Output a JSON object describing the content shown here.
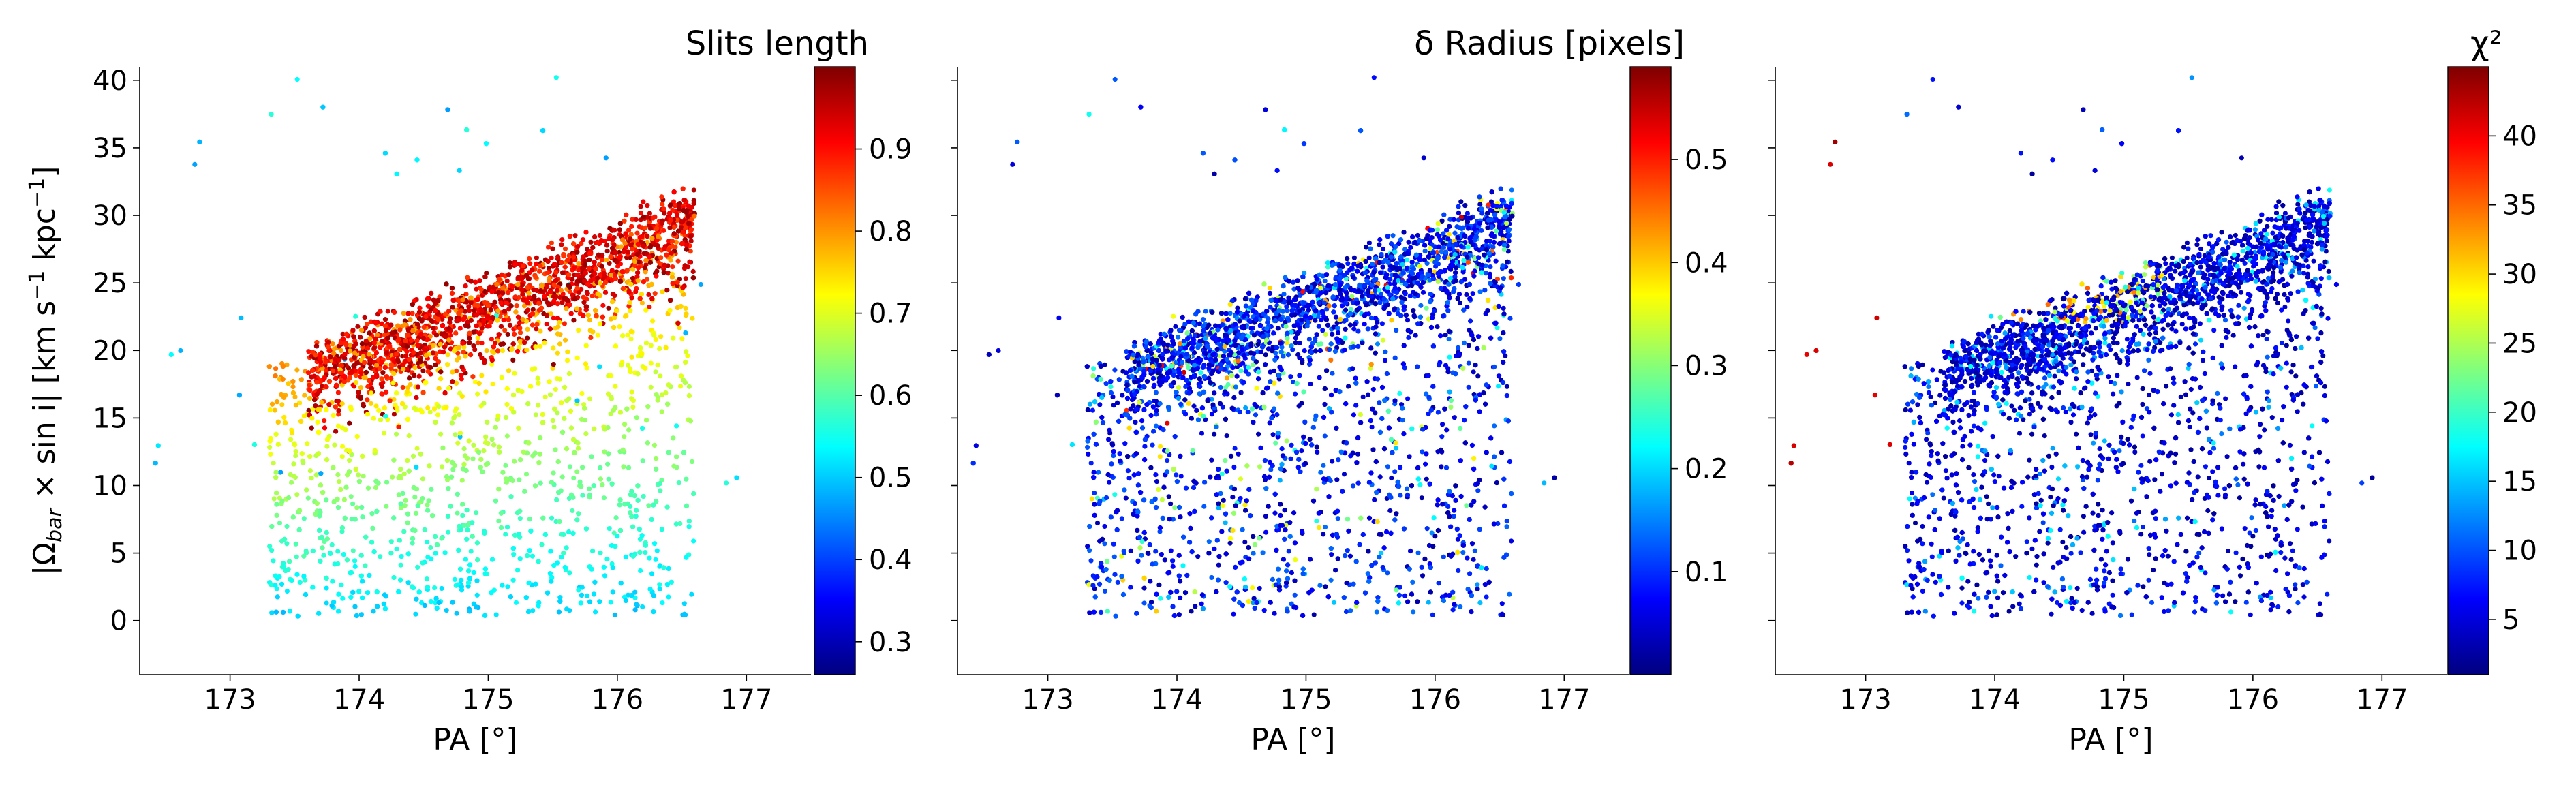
{
  "chart_data": [
    {
      "type": "scatter",
      "panel": "left",
      "title": "Slits length",
      "xlabel": "PA [°]",
      "ylabel_main": "|Ω",
      "ylabel_sub": "bar",
      "ylabel_rest": " × sin i|   [km s",
      "ylabel_exp1": "−1",
      "ylabel_mid": " kpc",
      "ylabel_exp2": "−1",
      "ylabel_end": "]",
      "xlim": [
        172.3,
        177.5
      ],
      "ylim": [
        -4,
        41
      ],
      "xticks": [
        173,
        174,
        175,
        176,
        177
      ],
      "yticks": [
        0,
        5,
        10,
        15,
        20,
        25,
        30,
        35,
        40
      ],
      "colorbar": {
        "label": "Slits length",
        "range": [
          0.26,
          1.0
        ],
        "ticks": [
          0.3,
          0.4,
          0.5,
          0.6,
          0.7,
          0.8,
          0.9
        ],
        "colormap": "jet"
      },
      "color_mode": "slit"
    },
    {
      "type": "scatter",
      "panel": "middle",
      "title": "δ Radius [pixels]",
      "xlabel": "PA [°]",
      "xlim": [
        172.3,
        177.5
      ],
      "ylim": [
        -4,
        41
      ],
      "xticks": [
        173,
        174,
        175,
        176,
        177
      ],
      "colorbar": {
        "label": "δ Radius [pixels]",
        "range": [
          0.0,
          0.59
        ],
        "ticks": [
          0.1,
          0.2,
          0.3,
          0.4,
          0.5
        ],
        "colormap": "jet"
      },
      "color_mode": "radius"
    },
    {
      "type": "scatter",
      "panel": "right",
      "title": "χ²",
      "xlabel": "PA [°]",
      "xlim": [
        172.3,
        177.5
      ],
      "ylim": [
        -4,
        41
      ],
      "xticks": [
        173,
        174,
        175,
        176,
        177
      ],
      "colorbar": {
        "label": "χ²",
        "range": [
          1.0,
          45.0
        ],
        "ticks": [
          5,
          10,
          15,
          20,
          25,
          30,
          35,
          40
        ],
        "colormap": "jet"
      },
      "color_mode": "chi2"
    }
  ],
  "palette": {
    "jet_stops": [
      "#00007f",
      "#0000ff",
      "#007fff",
      "#00ffff",
      "#7fff7f",
      "#ffff00",
      "#ff7f00",
      "#ff0000",
      "#7f0000"
    ]
  }
}
